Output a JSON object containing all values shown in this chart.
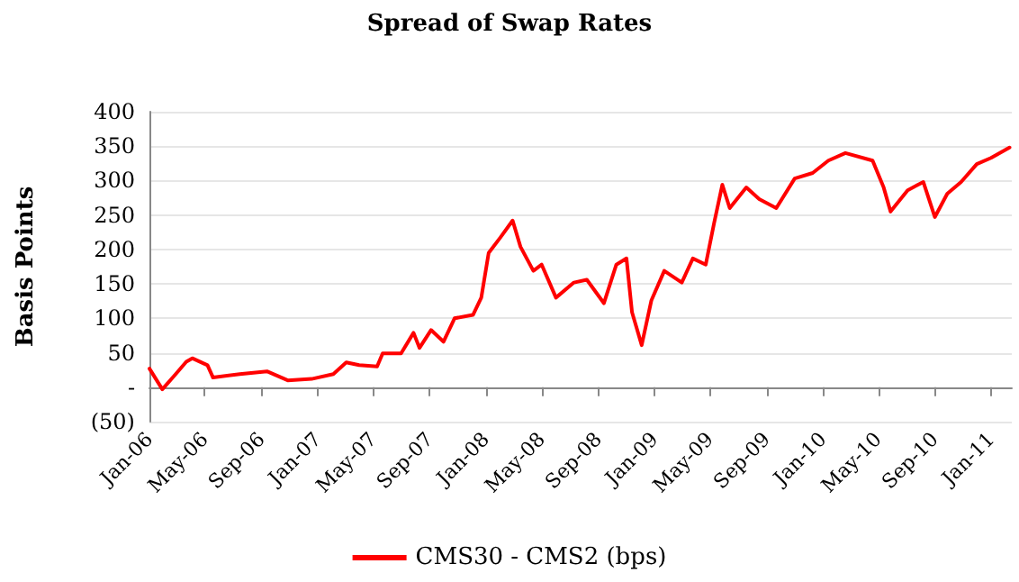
{
  "chart_data": {
    "type": "line",
    "title": "Spread of Swap Rates",
    "ylabel": "Basis Points",
    "x": [
      "2006-01-01",
      "2006-01-29",
      "2006-02-27",
      "2006-03-22",
      "2006-04-04",
      "2006-05-07",
      "2006-05-19",
      "2006-07-16",
      "2006-09-13",
      "2006-10-28",
      "2006-12-19",
      "2007-02-04",
      "2007-03-04",
      "2007-04-01",
      "2007-05-10",
      "2007-05-22",
      "2007-07-01",
      "2007-07-28",
      "2007-08-10",
      "2007-09-04",
      "2007-10-01",
      "2007-10-25",
      "2007-12-04",
      "2007-12-22",
      "2008-01-07",
      "2008-02-01",
      "2008-02-28",
      "2008-03-16",
      "2008-04-13",
      "2008-05-01",
      "2008-06-01",
      "2008-07-10",
      "2008-08-07",
      "2008-09-13",
      "2008-10-10",
      "2008-11-01",
      "2008-11-13",
      "2008-12-04",
      "2008-12-25",
      "2009-01-22",
      "2009-03-01",
      "2009-03-25",
      "2009-04-22",
      "2009-05-10",
      "2009-05-28",
      "2009-06-13",
      "2009-07-19",
      "2009-08-16",
      "2009-09-22",
      "2009-11-01",
      "2009-12-10",
      "2010-01-13",
      "2010-02-19",
      "2010-04-19",
      "2010-05-13",
      "2010-05-28",
      "2010-07-04",
      "2010-08-07",
      "2010-09-01",
      "2010-09-28",
      "2010-10-28",
      "2010-12-01",
      "2011-01-01",
      "2011-02-10"
    ],
    "series": [
      {
        "name": "CMS30 - CMS2 (bps)",
        "color": "#ff0000",
        "values": [
          27,
          -3,
          19,
          37,
          42,
          32,
          14,
          19,
          23,
          10,
          12,
          19,
          36,
          32,
          30,
          49,
          49,
          79,
          57,
          83,
          66,
          100,
          105,
          130,
          195,
          217,
          242,
          204,
          169,
          178,
          130,
          152,
          156,
          122,
          178,
          187,
          109,
          61,
          126,
          169,
          152,
          187,
          178,
          238,
          294,
          260,
          290,
          273,
          260,
          303,
          311,
          329,
          340,
          329,
          290,
          255,
          286,
          298,
          247,
          281,
          298,
          324,
          333,
          348
        ]
      }
    ],
    "xlim": [
      "2006-01-01",
      "2011-02-15"
    ],
    "xticks": [
      {
        "value": "2006-01-01",
        "label": "Jan-06"
      },
      {
        "value": "2006-05-01",
        "label": "May-06"
      },
      {
        "value": "2006-09-01",
        "label": "Sep-06"
      },
      {
        "value": "2007-01-01",
        "label": "Jan-07"
      },
      {
        "value": "2007-05-01",
        "label": "May-07"
      },
      {
        "value": "2007-09-01",
        "label": "Sep-07"
      },
      {
        "value": "2008-01-01",
        "label": "Jan-08"
      },
      {
        "value": "2008-05-01",
        "label": "May-08"
      },
      {
        "value": "2008-09-01",
        "label": "Sep-08"
      },
      {
        "value": "2009-01-01",
        "label": "Jan-09"
      },
      {
        "value": "2009-05-01",
        "label": "May-09"
      },
      {
        "value": "2009-09-01",
        "label": "Sep-09"
      },
      {
        "value": "2010-01-01",
        "label": "Jan-10"
      },
      {
        "value": "2010-05-01",
        "label": "May-10"
      },
      {
        "value": "2010-09-01",
        "label": "Sep-10"
      },
      {
        "value": "2011-01-01",
        "label": "Jan-11"
      }
    ],
    "ylim": [
      -50,
      400
    ],
    "yticks": [
      {
        "value": -50,
        "label": "(50)"
      },
      {
        "value": 0,
        "label": "-"
      },
      50,
      100,
      150,
      200,
      250,
      300,
      350,
      400
    ],
    "grid": "y",
    "legend": "bottom",
    "marker": "none",
    "line_style": "solid"
  }
}
